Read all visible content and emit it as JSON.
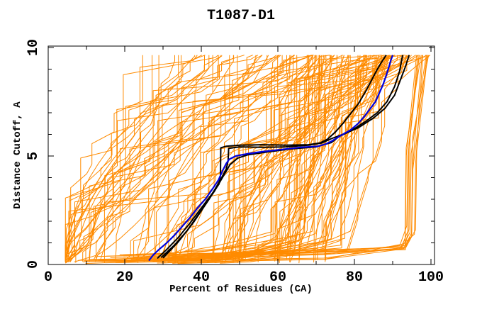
{
  "chart_data": {
    "type": "line",
    "title": "T1087-D1",
    "xlabel": "Percent of Residues (CA)",
    "ylabel": "Distance Cutoff, A",
    "xlim": [
      0,
      100
    ],
    "ylim": [
      0,
      10
    ],
    "x_major_ticks": [
      0,
      20,
      40,
      60,
      80,
      100
    ],
    "x_minor_ticks": [
      10,
      30,
      50,
      70,
      90
    ],
    "y_major_ticks": [
      0,
      5,
      10
    ],
    "y_minor_ticks": [
      1,
      2,
      3,
      4,
      6,
      7,
      8,
      9
    ],
    "grid": false,
    "legend_position": "none",
    "curve_y_max": 9.65,
    "colors": {
      "models": "#ff8b00",
      "highlight_primary": "#0000dd",
      "highlight_secondary": "#000000",
      "axis": "#000000",
      "background": "#ffffff"
    },
    "highlighted_series": [
      {
        "name": "best-model-blue",
        "color_key": "highlight_primary",
        "width": 2.2,
        "points": [
          [
            26.3,
            0.18
          ],
          [
            27.5,
            0.45
          ],
          [
            29,
            0.7
          ],
          [
            31,
            1.0
          ],
          [
            33,
            1.35
          ],
          [
            35,
            1.75
          ],
          [
            37,
            2.15
          ],
          [
            39,
            2.6
          ],
          [
            41,
            3.0
          ],
          [
            43,
            3.5
          ],
          [
            44.5,
            3.9
          ],
          [
            45.5,
            4.3
          ],
          [
            46.5,
            4.65
          ],
          [
            47.3,
            4.85
          ],
          [
            49,
            5.0
          ],
          [
            52,
            5.1
          ],
          [
            56,
            5.2
          ],
          [
            61,
            5.3
          ],
          [
            66,
            5.4
          ],
          [
            70.5,
            5.45
          ],
          [
            72.5,
            5.55
          ],
          [
            74.2,
            5.7
          ],
          [
            76.5,
            5.95
          ],
          [
            79,
            6.2
          ],
          [
            81,
            6.5
          ],
          [
            82.5,
            6.8
          ],
          [
            84,
            7.15
          ],
          [
            85.5,
            7.5
          ],
          [
            86.5,
            7.9
          ],
          [
            87.5,
            8.3
          ],
          [
            88.3,
            8.7
          ],
          [
            89,
            9.1
          ],
          [
            89.5,
            9.4
          ],
          [
            90,
            9.65
          ]
        ]
      },
      {
        "name": "top-model-black-1",
        "color_key": "highlight_secondary",
        "width": 2,
        "points": [
          [
            28.5,
            0.28
          ],
          [
            31,
            0.7
          ],
          [
            34,
            1.25
          ],
          [
            37,
            1.9
          ],
          [
            40,
            2.6
          ],
          [
            43,
            3.3
          ],
          [
            44.6,
            3.7
          ],
          [
            45.0,
            4.1
          ],
          [
            45.1,
            5.38
          ],
          [
            46.5,
            5.45
          ],
          [
            50,
            5.5
          ],
          [
            56,
            5.52
          ],
          [
            62,
            5.5
          ],
          [
            68,
            5.52
          ],
          [
            71,
            5.6
          ],
          [
            73,
            5.78
          ],
          [
            75,
            6.1
          ],
          [
            77,
            6.5
          ],
          [
            79,
            6.95
          ],
          [
            81,
            7.4
          ],
          [
            83,
            8.0
          ],
          [
            84.5,
            8.5
          ],
          [
            86,
            9.0
          ],
          [
            87,
            9.3
          ],
          [
            88.3,
            9.65
          ]
        ]
      },
      {
        "name": "top-model-black-2",
        "color_key": "highlight_secondary",
        "width": 2,
        "points": [
          [
            29.5,
            0.32
          ],
          [
            33,
            0.9
          ],
          [
            36.5,
            1.6
          ],
          [
            40,
            2.5
          ],
          [
            43.5,
            3.4
          ],
          [
            45.5,
            4.0
          ],
          [
            47.5,
            4.6
          ],
          [
            49.5,
            4.9
          ],
          [
            52,
            5.05
          ],
          [
            57,
            5.18
          ],
          [
            63,
            5.32
          ],
          [
            70,
            5.42
          ],
          [
            74,
            5.62
          ],
          [
            76,
            5.9
          ],
          [
            79,
            6.15
          ],
          [
            83,
            6.6
          ],
          [
            86,
            7.0
          ],
          [
            88.5,
            7.5
          ],
          [
            90.5,
            8.2
          ],
          [
            91.8,
            8.9
          ],
          [
            92.6,
            9.65
          ]
        ]
      },
      {
        "name": "top-model-black-3",
        "color_key": "highlight_secondary",
        "width": 2,
        "points": [
          [
            30,
            0.3
          ],
          [
            34,
            1.05
          ],
          [
            38,
            1.95
          ],
          [
            42,
            3.0
          ],
          [
            45,
            3.9
          ],
          [
            46.5,
            4.4
          ],
          [
            47,
            4.77
          ],
          [
            47.15,
            5.35
          ],
          [
            50,
            5.42
          ],
          [
            56,
            5.4
          ],
          [
            62,
            5.42
          ],
          [
            68,
            5.5
          ],
          [
            71.5,
            5.6
          ],
          [
            74,
            5.8
          ],
          [
            77,
            6.0
          ],
          [
            81,
            6.3
          ],
          [
            85,
            6.75
          ],
          [
            88,
            7.2
          ],
          [
            90.5,
            7.8
          ],
          [
            92,
            8.5
          ],
          [
            93.3,
            9.1
          ],
          [
            94.3,
            9.65
          ]
        ]
      }
    ],
    "model_ensemble": {
      "note": "approx. 147 server-model GDT curves (orange spaghetti), shapes estimated from pixels",
      "count_total": 147,
      "seed": 1087,
      "line_width": 1,
      "type_a": {
        "count": 100,
        "top_min": 31,
        "top_max": 100,
        "top_skew": 0.72,
        "span_min": 22,
        "span_max": 72,
        "start_min": 4.5,
        "step_prob": 0.3,
        "long_jump_prob": 0.06
      },
      "bottom_band": {
        "count": 36,
        "start_x": [
          7,
          45
        ],
        "base_y": [
          0.04,
          0.49
        ],
        "knee_x": [
          58,
          82
        ],
        "knee_y": [
          0.5,
          1.6
        ],
        "rise_span": [
          5,
          16
        ],
        "rise_x_cap": 94,
        "step_prob": 0.45
      },
      "right_cluster": {
        "count": 11,
        "start_x": [
          10,
          45
        ],
        "base_y": [
          0.1,
          0.4
        ],
        "converge_x": [
          91.5,
          93.5
        ],
        "converge_y": [
          0.6,
          0.95
        ],
        "kink_x": [
          93.2,
          96.0
        ],
        "kink_y": [
          1.1,
          1.9
        ],
        "mid_y": [
          4.2,
          6.0
        ],
        "end_x_span": [
          1.5,
          5.0
        ]
      }
    }
  }
}
